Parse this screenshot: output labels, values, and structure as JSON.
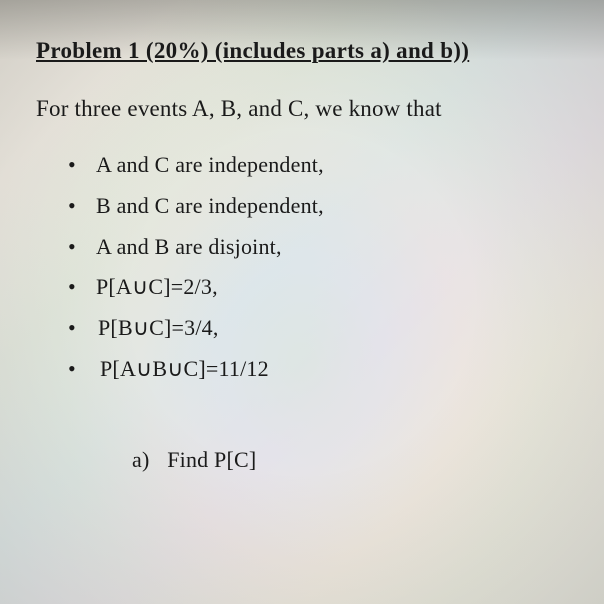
{
  "problem": {
    "title": "Problem 1 (20%) (includes parts a) and b))",
    "intro": "For three events A, B, and C, we know that",
    "bullets": [
      "A and C are independent,",
      "B and C are independent,",
      "A and B are disjoint,",
      "P[A∪C]=2/3,",
      "P[B∪C]=3/4,",
      "P[A∪B∪C]=11/12"
    ],
    "part_a_label": "a)",
    "part_a_text": "Find P[C]"
  },
  "styling": {
    "background_base": "#e8e4dc",
    "text_color": "#1a1a1a",
    "title_fontsize": 23,
    "body_fontsize": 22,
    "font_family": "Times New Roman"
  }
}
